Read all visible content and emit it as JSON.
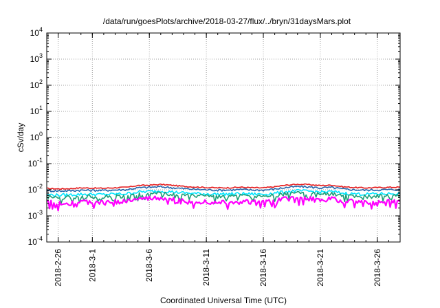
{
  "chart_data": {
    "type": "line",
    "title": "/data/run/goesPlots/archive/2018-03-27/flux/../bryn/31daysMars.plot",
    "xlabel": "Coordinated Universal Time (UTC)",
    "ylabel": "cSv/day",
    "yscale": "log",
    "ylim_exponents": [
      -4,
      4
    ],
    "y_tick_base": "10",
    "y_tick_exponents": [
      "-4",
      "-3",
      "-2",
      "-1",
      "0",
      "1",
      "2",
      "3",
      "4"
    ],
    "xlim": [
      "2018-02-25",
      "2018-03-28"
    ],
    "x_ticks": [
      {
        "date": "2018-02-26",
        "label": "2018-2-26"
      },
      {
        "date": "2018-03-01",
        "label": "2018-3-1"
      },
      {
        "date": "2018-03-06",
        "label": "2018-3-6"
      },
      {
        "date": "2018-03-11",
        "label": "2018-3-11"
      },
      {
        "date": "2018-03-16",
        "label": "2018-3-16"
      },
      {
        "date": "2018-03-21",
        "label": "2018-3-21"
      },
      {
        "date": "2018-03-26",
        "label": "2018-3-26"
      }
    ],
    "grid": true,
    "grid_style": "dotted",
    "x": [
      "2018-02-25",
      "2018-02-26",
      "2018-02-27",
      "2018-02-28",
      "2018-03-01",
      "2018-03-02",
      "2018-03-03",
      "2018-03-04",
      "2018-03-05",
      "2018-03-06",
      "2018-03-07",
      "2018-03-08",
      "2018-03-09",
      "2018-03-10",
      "2018-03-11",
      "2018-03-12",
      "2018-03-13",
      "2018-03-14",
      "2018-03-15",
      "2018-03-16",
      "2018-03-17",
      "2018-03-18",
      "2018-03-19",
      "2018-03-20",
      "2018-03-21",
      "2018-03-22",
      "2018-03-23",
      "2018-03-24",
      "2018-03-25",
      "2018-03-26",
      "2018-03-27",
      "2018-03-28"
    ],
    "series": [
      {
        "color": "#e41a1c",
        "values": [
          0.0112,
          0.0108,
          0.011,
          0.0118,
          0.0116,
          0.0114,
          0.012,
          0.0124,
          0.0145,
          0.015,
          0.016,
          0.0148,
          0.0135,
          0.0128,
          0.0122,
          0.0118,
          0.012,
          0.0125,
          0.012,
          0.0118,
          0.013,
          0.015,
          0.0162,
          0.0158,
          0.0145,
          0.015,
          0.013,
          0.0122,
          0.0118,
          0.0121,
          0.0124,
          0.0126
        ]
      },
      {
        "color": "#2166ac",
        "values": [
          0.0092,
          0.009,
          0.0091,
          0.0096,
          0.0095,
          0.0094,
          0.0098,
          0.0101,
          0.0118,
          0.0124,
          0.013,
          0.012,
          0.011,
          0.0104,
          0.01,
          0.0097,
          0.0098,
          0.0102,
          0.0098,
          0.0097,
          0.0106,
          0.0122,
          0.0132,
          0.0128,
          0.0118,
          0.0122,
          0.0106,
          0.01,
          0.0096,
          0.0099,
          0.0101,
          0.0102
        ]
      },
      {
        "color": "#00e5ff",
        "values": [
          0.0066,
          0.0062,
          0.0064,
          0.0068,
          0.0067,
          0.0066,
          0.0069,
          0.0071,
          0.0082,
          0.0086,
          0.009,
          0.0083,
          0.0076,
          0.0072,
          0.007,
          0.0068,
          0.0069,
          0.0071,
          0.0069,
          0.0068,
          0.0074,
          0.0085,
          0.0091,
          0.0088,
          0.0082,
          0.0085,
          0.0074,
          0.007,
          0.0068,
          0.007,
          0.0071,
          0.0072
        ]
      },
      {
        "color": "#1b9e77",
        "values": [
          0.0055,
          0.005,
          0.0052,
          0.0056,
          0.0054,
          0.0053,
          0.0057,
          0.0058,
          0.0068,
          0.0072,
          0.0075,
          0.0069,
          0.0062,
          0.0059,
          0.0057,
          0.0055,
          0.0056,
          0.0058,
          0.0056,
          0.0055,
          0.0061,
          0.007,
          0.0075,
          0.0072,
          0.0067,
          0.007,
          0.0061,
          0.0057,
          0.0055,
          0.0057,
          0.0058,
          0.0059
        ]
      },
      {
        "color": "#ff00ff",
        "values": [
          0.0034,
          0.003,
          0.0031,
          0.0034,
          0.0033,
          0.0032,
          0.0035,
          0.0036,
          0.0043,
          0.0046,
          0.0048,
          0.0043,
          0.0038,
          0.0036,
          0.0035,
          0.0034,
          0.0034,
          0.0036,
          0.0034,
          0.0034,
          0.0038,
          0.0045,
          0.0048,
          0.0046,
          0.0042,
          0.0045,
          0.0038,
          0.0035,
          0.0033,
          0.0035,
          0.0036,
          0.0036
        ]
      }
    ]
  }
}
